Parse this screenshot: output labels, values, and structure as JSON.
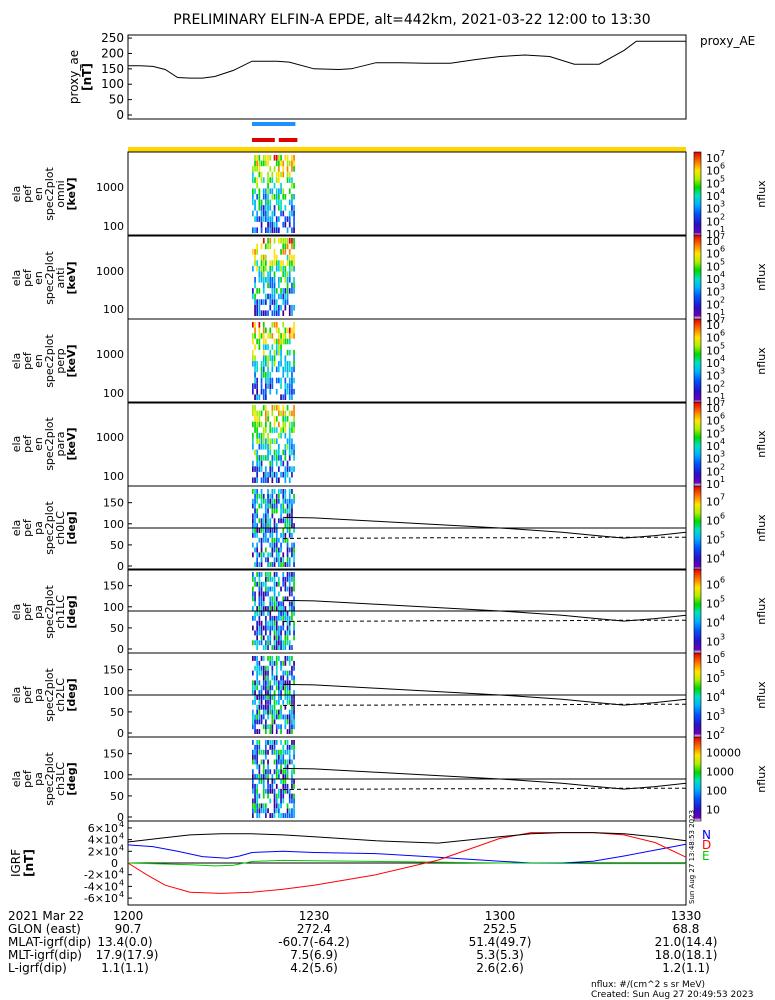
{
  "title": "PRELIMINARY ELFIN-A EPDE, alt=442km, 2021-03-22 12:00 to 13:30",
  "proxy_ae": {
    "legend": "proxy_AE",
    "ylabel": [
      "proxy_ae",
      "[nT]"
    ],
    "yticks": [
      "0",
      "50",
      "100",
      "150",
      "200",
      "250"
    ]
  },
  "colorbars": [
    {
      "ticks": [
        "10",
        "10",
        "10",
        "10",
        "10",
        "10",
        "10"
      ],
      "exps": [
        "1",
        "2",
        "3",
        "4",
        "5",
        "6",
        "7"
      ],
      "label": "nflux"
    },
    {
      "ticks": [
        "10",
        "10",
        "10",
        "10",
        "10",
        "10",
        "10"
      ],
      "exps": [
        "1",
        "2",
        "3",
        "4",
        "5",
        "6",
        "7"
      ],
      "label": "nflux"
    },
    {
      "ticks": [
        "10",
        "10",
        "10",
        "10",
        "10",
        "10",
        "10"
      ],
      "exps": [
        "1",
        "2",
        "3",
        "4",
        "5",
        "6",
        "7"
      ],
      "label": "nflux"
    },
    {
      "ticks": [
        "10",
        "10",
        "10",
        "10",
        "10",
        "10",
        "10"
      ],
      "exps": [
        "1",
        "2",
        "3",
        "4",
        "5",
        "6",
        "7"
      ],
      "label": "nflux"
    },
    {
      "ticks": [
        "10",
        "10",
        "10",
        "10"
      ],
      "exps": [
        "4",
        "5",
        "6",
        "7"
      ],
      "label": "nflux"
    },
    {
      "ticks": [
        "10",
        "10",
        "10",
        "10"
      ],
      "exps": [
        "3",
        "4",
        "5",
        "6"
      ],
      "label": "nflux"
    },
    {
      "ticks": [
        "10",
        "10",
        "10",
        "10",
        "10"
      ],
      "exps": [
        "2",
        "3",
        "4",
        "5",
        "6"
      ],
      "label": "nflux"
    },
    {
      "ticks": [
        "10",
        "100",
        "1000",
        "10000"
      ],
      "exps": [
        "",
        "",
        "",
        ""
      ],
      "label": "nflux"
    }
  ],
  "energy_panels": [
    {
      "ylabel": [
        "ela",
        "pef",
        "en",
        "spec2plot",
        "omni",
        "[keV]"
      ],
      "yticks": [
        "100",
        "1000"
      ]
    },
    {
      "ylabel": [
        "ela",
        "pef",
        "en",
        "spec2plot",
        "anti",
        "[keV]"
      ],
      "yticks": [
        "100",
        "1000"
      ]
    },
    {
      "ylabel": [
        "ela",
        "pef",
        "en",
        "spec2plot",
        "perp",
        "[keV]"
      ],
      "yticks": [
        "100",
        "1000"
      ]
    },
    {
      "ylabel": [
        "ela",
        "pef",
        "en",
        "spec2plot",
        "para",
        "[keV]"
      ],
      "yticks": [
        "100",
        "1000"
      ]
    }
  ],
  "pa_panels": [
    {
      "ylabel": [
        "ela",
        "pef",
        "pa",
        "spec2plot",
        "ch0LC",
        "[deg]"
      ],
      "yticks": [
        "0",
        "50",
        "100",
        "150"
      ]
    },
    {
      "ylabel": [
        "ela",
        "pef",
        "pa",
        "spec2plot",
        "ch1LC",
        "[deg]"
      ],
      "yticks": [
        "0",
        "50",
        "100",
        "150"
      ]
    },
    {
      "ylabel": [
        "ela",
        "pef",
        "pa",
        "spec2plot",
        "ch2LC",
        "[deg]"
      ],
      "yticks": [
        "0",
        "50",
        "100",
        "150"
      ]
    },
    {
      "ylabel": [
        "ela",
        "pef",
        "pa",
        "spec2plot",
        "ch3LC",
        "[deg]"
      ],
      "yticks": [
        "0",
        "50",
        "100",
        "150"
      ]
    }
  ],
  "igrf": {
    "ylabel": [
      "IGRF",
      "[nT]"
    ],
    "ytick_mant": [
      "-6×10",
      "-4×10",
      "-2×10",
      "0",
      "2×10",
      "4×10",
      "6×10"
    ],
    "ytick_exp": [
      "4",
      "4",
      "4",
      "",
      "4",
      "4",
      "4"
    ],
    "legend": [
      "N",
      "E",
      "D"
    ],
    "timestamp": "Sun Aug 27 13:48:53 2023"
  },
  "footer": {
    "rows": [
      [
        "2021 Mar 22",
        "1200",
        "1230",
        "1300",
        "1330"
      ],
      [
        "GLON (east)",
        "90.7",
        "272.4",
        "252.5",
        "68.8"
      ],
      [
        "MLAT-igrf(dip)",
        "13.4(0.0)",
        "-60.7(-64.2)",
        "51.4(49.7)",
        "21.0(14.4)"
      ],
      [
        "MLT-igrf(dip)",
        "17.9(17.9)",
        "7.5(6.9)",
        "5.3(5.3)",
        "18.0(18.1)"
      ],
      [
        "L-igrf(dip)",
        "1.1(1.1)",
        "4.2(5.6)",
        "2.6(2.6)",
        "1.2(1.1)"
      ]
    ],
    "units": "nflux: #/(cm^2 s sr MeV)",
    "created": "Created: Sun Aug 27 20:49:53 2023"
  },
  "chart_data": {
    "type": "line",
    "x_unit": "UT",
    "x_range": [
      "12:00",
      "13:30"
    ],
    "proxy_ae": {
      "ylim": [
        0,
        260
      ],
      "x": [
        "12:00",
        "12:02",
        "12:04",
        "12:06",
        "12:08",
        "12:10",
        "12:12",
        "12:14",
        "12:17",
        "12:20",
        "12:24",
        "12:26",
        "12:30",
        "12:34",
        "12:36",
        "12:40",
        "12:44",
        "12:48",
        "12:52",
        "12:56",
        "13:00",
        "13:04",
        "13:08",
        "13:12",
        "13:16",
        "13:20",
        "13:22",
        "13:24",
        "13:27",
        "13:30"
      ],
      "y": [
        160,
        160,
        158,
        148,
        122,
        120,
        120,
        125,
        145,
        175,
        175,
        172,
        150,
        148,
        150,
        170,
        170,
        168,
        168,
        180,
        190,
        195,
        190,
        165,
        165,
        210,
        240,
        240,
        240,
        240
      ]
    },
    "bars": [
      {
        "color": "#1e90ff",
        "start": "12:20",
        "end": "12:27"
      },
      {
        "color": "#e00000",
        "start": "12:20",
        "end": "12:24"
      },
      {
        "color": "#e00000",
        "start": "12:24",
        "end": "12:27"
      }
    ],
    "yellow_bar": {
      "color": "#ffd500",
      "start": "12:00",
      "end": "13:30"
    },
    "spectrogram_window": {
      "start": "12:20",
      "end": "12:27"
    },
    "loss_cone": {
      "x": [
        "12:25",
        "12:30",
        "12:40",
        "12:50",
        "13:00",
        "13:10",
        "13:15",
        "13:20",
        "13:25",
        "13:30"
      ],
      "solid": [
        115,
        114,
        106,
        98,
        90,
        80,
        73,
        66,
        72,
        80
      ],
      "dashed": [
        65,
        66,
        66,
        67,
        67,
        67,
        68,
        68,
        68,
        68
      ],
      "ninety": 90
    },
    "igrf": {
      "ylim": [
        -65000,
        65000
      ],
      "series": [
        {
          "name": "N",
          "color": "#0000ff",
          "x": [
            "12:00",
            "12:04",
            "12:08",
            "12:12",
            "12:16",
            "12:18",
            "12:20",
            "12:25",
            "12:30",
            "12:40",
            "12:50",
            "13:00",
            "13:05",
            "13:10",
            "13:15",
            "13:20",
            "13:25",
            "13:30"
          ],
          "y": [
            31000,
            28000,
            20000,
            11000,
            8000,
            12000,
            18000,
            20000,
            18000,
            16000,
            10000,
            3000,
            0,
            0,
            3000,
            12000,
            22000,
            32000
          ]
        },
        {
          "name": "E",
          "color": "#00cc00",
          "x": [
            "12:00",
            "12:05",
            "12:10",
            "12:14",
            "12:17",
            "12:20",
            "12:25",
            "12:30",
            "12:45",
            "13:00",
            "13:15",
            "13:20",
            "13:25",
            "13:30"
          ],
          "y": [
            0,
            -1500,
            -3000,
            -5000,
            -4000,
            2500,
            4500,
            4000,
            2000,
            0,
            -1000,
            -1000,
            -1000,
            -1000
          ]
        },
        {
          "name": "D",
          "color": "#ff0000",
          "x": [
            "12:00",
            "12:03",
            "12:06",
            "12:10",
            "12:15",
            "12:20",
            "12:25",
            "12:30",
            "12:40",
            "12:50",
            "13:00",
            "13:05",
            "13:10",
            "13:15",
            "13:20",
            "13:25",
            "13:30"
          ],
          "y": [
            0,
            -20000,
            -38000,
            -50000,
            -52000,
            -50000,
            -45000,
            -38000,
            -20000,
            5000,
            42000,
            52000,
            52000,
            52000,
            48000,
            35000,
            10000
          ]
        },
        {
          "name": "|B|",
          "color": "#000000",
          "x": [
            "12:00",
            "12:05",
            "12:10",
            "12:15",
            "12:20",
            "12:25",
            "12:30",
            "12:40",
            "12:50",
            "13:00",
            "13:05",
            "13:10",
            "13:15",
            "13:20",
            "13:25",
            "13:30"
          ],
          "y": [
            36000,
            42000,
            48000,
            50000,
            50000,
            48000,
            45000,
            38000,
            34000,
            45000,
            50000,
            52000,
            52000,
            50000,
            45000,
            38000
          ]
        }
      ]
    }
  }
}
